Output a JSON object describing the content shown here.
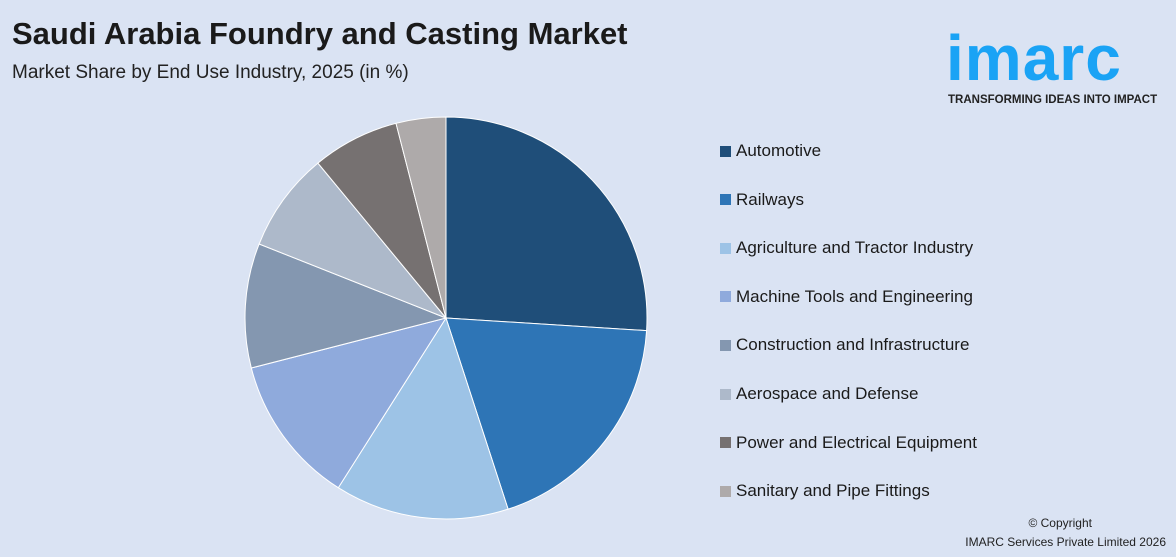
{
  "header": {
    "title": "Saudi Arabia Foundry and Casting Market",
    "subtitle": "Market Share by End Use Industry, 2025 (in %)"
  },
  "logo": {
    "word": "imarc",
    "tagline": "TRANSFORMING IDEAS INTO IMPACT",
    "color": "#1aa3f5"
  },
  "chart_data": {
    "type": "pie",
    "title": "Saudi Arabia Foundry and Casting Market",
    "subtitle": "Market Share by End Use Industry, 2025 (in %)",
    "start_angle": "12 o'clock, clockwise",
    "legend_position": "right",
    "categories": [
      "Automotive",
      "Railways",
      "Agriculture and Tractor Industry",
      "Machine Tools and Engineering",
      "Construction and Infrastructure",
      "Aerospace and Defense",
      "Power and Electrical Equipment",
      "Sanitary and Pipe Fittings"
    ],
    "values": [
      26,
      19,
      14,
      12,
      10,
      8,
      7,
      4
    ],
    "colors": [
      "#1f4e79",
      "#2e75b6",
      "#9dc3e6",
      "#8faadc",
      "#8497b0",
      "#adb9ca",
      "#767171",
      "#aeaaaa"
    ]
  },
  "footer": {
    "copyright": "© Copyright",
    "company": "IMARC Services Private Limited 2026"
  }
}
